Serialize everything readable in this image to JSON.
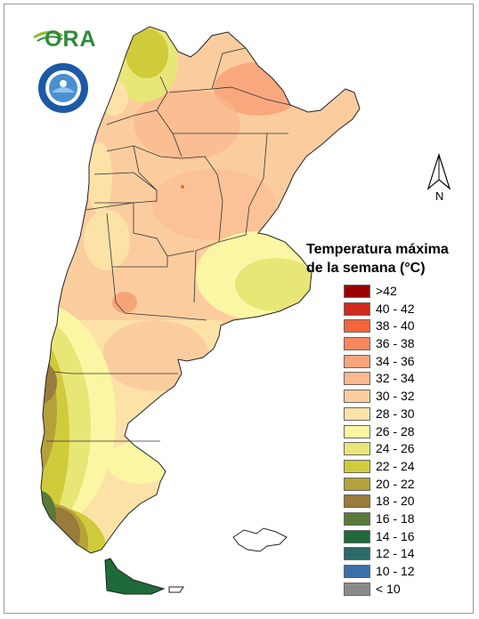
{
  "logo": {
    "text": "ORA",
    "icon": "ora-logo-icon"
  },
  "agency_badge": {
    "icon": "smn-badge-icon"
  },
  "north_arrow": {
    "label": "N",
    "icon": "north-arrow-icon"
  },
  "legend": {
    "title_line1": "Temperatura máxima",
    "title_line2": "de la semana (°C)",
    "items": [
      {
        "label": ">42",
        "color": "#9b0000"
      },
      {
        "label": "40 - 42",
        "color": "#d02a1e"
      },
      {
        "label": "38 - 40",
        "color": "#f2663a"
      },
      {
        "label": "36 - 38",
        "color": "#f7895d"
      },
      {
        "label": "34 - 36",
        "color": "#f8a47a"
      },
      {
        "label": "32 - 34",
        "color": "#f9b88d"
      },
      {
        "label": "30 - 32",
        "color": "#fbcd9e"
      },
      {
        "label": "28 - 30",
        "color": "#fde2a8"
      },
      {
        "label": "26 - 28",
        "color": "#fbf6a4"
      },
      {
        "label": "24 - 26",
        "color": "#e8e677"
      },
      {
        "label": "22 - 24",
        "color": "#cfcb3a"
      },
      {
        "label": "20 - 22",
        "color": "#b5a13a"
      },
      {
        "label": "18 - 20",
        "color": "#9a7b3b"
      },
      {
        "label": "16 - 18",
        "color": "#5a7a3a"
      },
      {
        "label": "14 - 16",
        "color": "#1f6a3a"
      },
      {
        "label": "12 - 14",
        "color": "#2c6a6a"
      },
      {
        "label": "10 - 12",
        "color": "#3b6fa8"
      },
      {
        "label": "< 10",
        "color": "#8a8a8a"
      }
    ]
  }
}
